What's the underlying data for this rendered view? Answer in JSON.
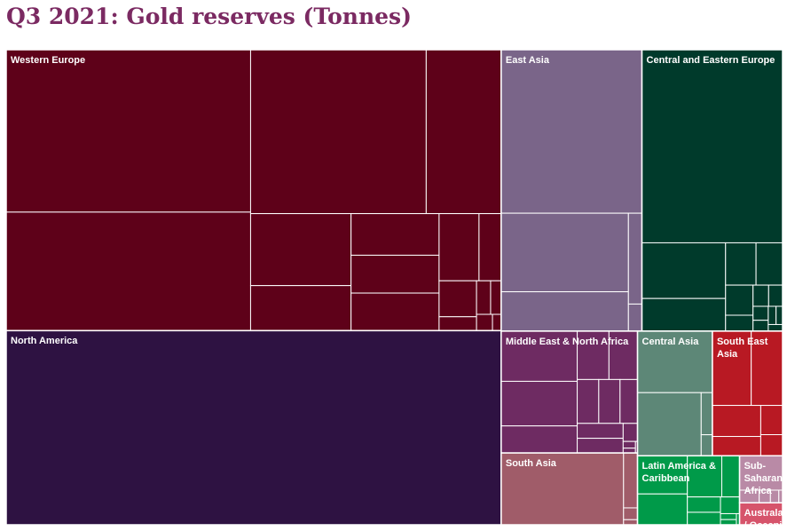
{
  "chart_data": {
    "type": "treemap",
    "title": "Q3 2021: Gold reserves (Tonnes)",
    "series": [
      {
        "name": "Western Europe",
        "color": "#5e0119",
        "values": [
          3359,
          2452,
          2436,
          1040,
          612,
          383,
          310,
          282,
          280,
          227,
          126,
          114,
          44,
          40,
          30,
          22,
          12
        ]
      },
      {
        "name": "North America",
        "color": "#2e1242",
        "values": [
          8133
        ]
      },
      {
        "name": "East Asia",
        "color": "#7a6589",
        "values": [
          1948,
          846,
          424,
          104,
          31
        ]
      },
      {
        "name": "Central and Eastern Europe",
        "color": "#003a2b",
        "values": [
          2298,
          394,
          231,
          109,
          95,
          70,
          37,
          28,
          25,
          18,
          14,
          12,
          10,
          8
        ]
      },
      {
        "name": "Middle East & North Africa",
        "color": "#6e2b62",
        "values": [
          323,
          287,
          174,
          130,
          117,
          80,
          79,
          65,
          58,
          57,
          22,
          7,
          5,
          2
        ]
      },
      {
        "name": "South Asia",
        "color": "#a05c69",
        "values": [
          744,
          65,
          14,
          6
        ]
      },
      {
        "name": "Central Asia",
        "color": "#5d8777",
        "values": [
          390,
          340,
          40,
          20
        ]
      },
      {
        "name": "South East Asia",
        "color": "#b81923",
        "values": [
          244,
          197,
          127,
          79,
          54,
          39
        ]
      },
      {
        "name": "Latin America & Caribbean",
        "color": "#009a49",
        "values": [
          161,
          130,
          120,
          62,
          43,
          35,
          27,
          8,
          7,
          3
        ]
      },
      {
        "name": "Sub-Saharan Africa",
        "color": "#b98aa6",
        "values": [
          125,
          21,
          12,
          9,
          4
        ]
      },
      {
        "name": "Australasia / Oceania",
        "color": "#d6546b",
        "values": [
          80
        ]
      }
    ]
  }
}
